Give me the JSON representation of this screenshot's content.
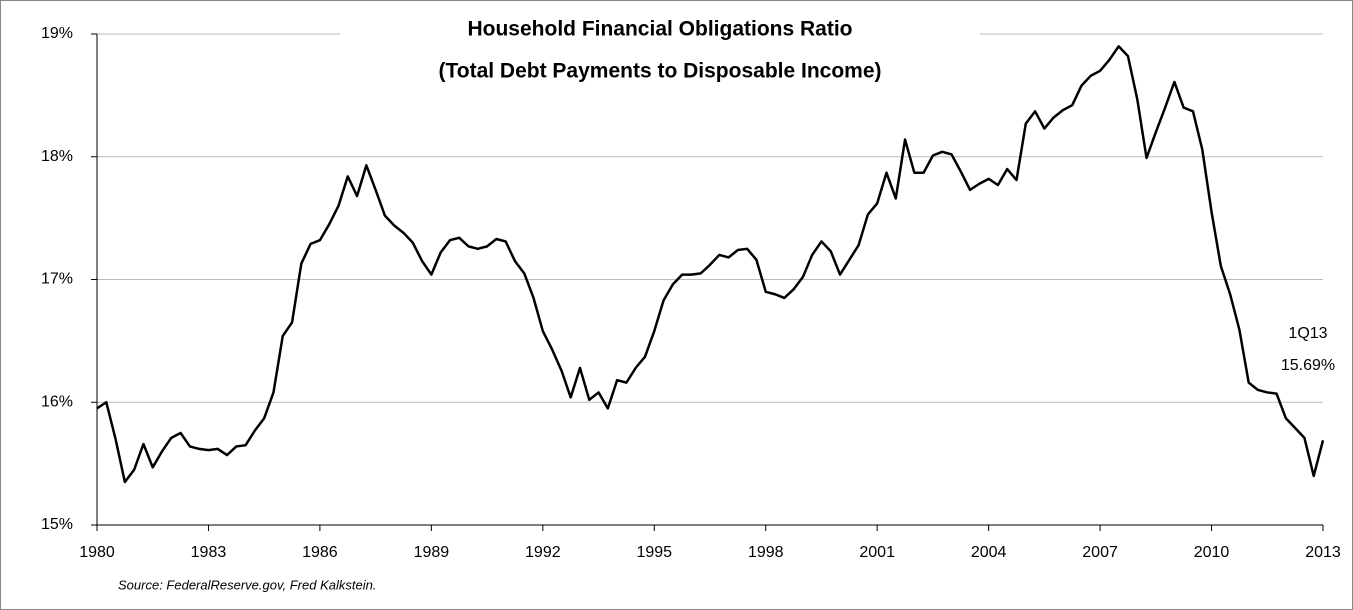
{
  "chart_data": {
    "type": "line",
    "title": "Household Financial Obligations Ratio",
    "subtitle": "(Total Debt Payments to Disposable Income)",
    "source": "Source: FederalReserve.gov, Fred Kalkstein.",
    "annotations": [
      "1Q13",
      "15.69%"
    ],
    "x": [
      1980,
      1980.25,
      1980.5,
      1980.75,
      1981,
      1981.25,
      1981.5,
      1981.75,
      1982,
      1982.25,
      1982.5,
      1982.75,
      1983,
      1983.25,
      1983.5,
      1983.75,
      1984,
      1984.25,
      1984.5,
      1984.75,
      1985,
      1985.25,
      1985.5,
      1985.75,
      1986,
      1986.25,
      1986.5,
      1986.75,
      1987,
      1987.25,
      1987.5,
      1987.75,
      1988,
      1988.25,
      1988.5,
      1988.75,
      1989,
      1989.25,
      1989.5,
      1989.75,
      1990,
      1990.25,
      1990.5,
      1990.75,
      1991,
      1991.25,
      1991.5,
      1991.75,
      1992,
      1992.25,
      1992.5,
      1992.75,
      1993,
      1993.25,
      1993.5,
      1993.75,
      1994,
      1994.25,
      1994.5,
      1994.75,
      1995,
      1995.25,
      1995.5,
      1995.75,
      1996,
      1996.25,
      1996.5,
      1996.75,
      1997,
      1997.25,
      1997.5,
      1997.75,
      1998,
      1998.25,
      1998.5,
      1998.75,
      1999,
      1999.25,
      1999.5,
      1999.75,
      2000,
      2000.25,
      2000.5,
      2000.75,
      2001,
      2001.25,
      2001.5,
      2001.75,
      2002,
      2002.25,
      2002.5,
      2002.75,
      2003,
      2003.25,
      2003.5,
      2003.75,
      2004,
      2004.25,
      2004.5,
      2004.75,
      2005,
      2005.25,
      2005.5,
      2005.75,
      2006,
      2006.25,
      2006.5,
      2006.75,
      2007,
      2007.25,
      2007.5,
      2007.75,
      2008,
      2008.25,
      2008.5,
      2008.75,
      2009,
      2009.25,
      2009.5,
      2009.75,
      2010,
      2010.25,
      2010.5,
      2010.75,
      2011,
      2011.25,
      2011.5,
      2011.75,
      2012,
      2012.25,
      2012.5,
      2012.75,
      2013
    ],
    "series": [
      {
        "color": "#000000",
        "values": [
          15.95,
          16.0,
          15.7,
          15.35,
          15.45,
          15.66,
          15.47,
          15.6,
          15.71,
          15.75,
          15.64,
          15.62,
          15.61,
          15.62,
          15.57,
          15.64,
          15.65,
          15.77,
          15.87,
          16.08,
          16.54,
          16.65,
          17.13,
          17.29,
          17.32,
          17.45,
          17.6,
          17.84,
          17.68,
          17.93,
          17.73,
          17.52,
          17.44,
          17.38,
          17.3,
          17.15,
          17.04,
          17.22,
          17.32,
          17.34,
          17.27,
          17.25,
          17.27,
          17.33,
          17.31,
          17.15,
          17.05,
          16.85,
          16.58,
          16.43,
          16.26,
          16.04,
          16.28,
          16.02,
          16.08,
          15.95,
          16.18,
          16.16,
          16.28,
          16.37,
          16.58,
          16.83,
          16.96,
          17.04,
          17.04,
          17.05,
          17.12,
          17.2,
          17.18,
          17.24,
          17.25,
          17.16,
          16.9,
          16.88,
          16.85,
          16.92,
          17.02,
          17.2,
          17.31,
          17.23,
          17.04,
          17.16,
          17.28,
          17.53,
          17.62,
          17.87,
          17.66,
          18.14,
          17.87,
          17.87,
          18.01,
          18.04,
          18.02,
          17.88,
          17.73,
          17.78,
          17.82,
          17.77,
          17.9,
          17.81,
          18.27,
          18.37,
          18.23,
          18.32,
          18.38,
          18.42,
          18.58,
          18.66,
          18.7,
          18.79,
          18.9,
          18.82,
          18.47,
          17.99,
          18.2,
          18.4,
          18.61,
          18.4,
          18.37,
          18.06,
          17.55,
          17.11,
          16.88,
          16.59,
          16.16,
          16.1,
          16.08,
          16.07,
          15.87,
          15.79,
          15.71,
          15.4,
          15.69
        ]
      }
    ],
    "xlim": [
      1980,
      2013
    ],
    "xticks": [
      1980,
      1983,
      1986,
      1989,
      1992,
      1995,
      1998,
      2001,
      2004,
      2007,
      2010,
      2013
    ],
    "ylim": [
      15,
      19
    ],
    "yticks": [
      {
        "value": 15,
        "label": "15%"
      },
      {
        "value": 16,
        "label": "16%"
      },
      {
        "value": 17,
        "label": "17%"
      },
      {
        "value": 18,
        "label": "18%"
      },
      {
        "value": 19,
        "label": "19%"
      }
    ],
    "grid": true
  }
}
